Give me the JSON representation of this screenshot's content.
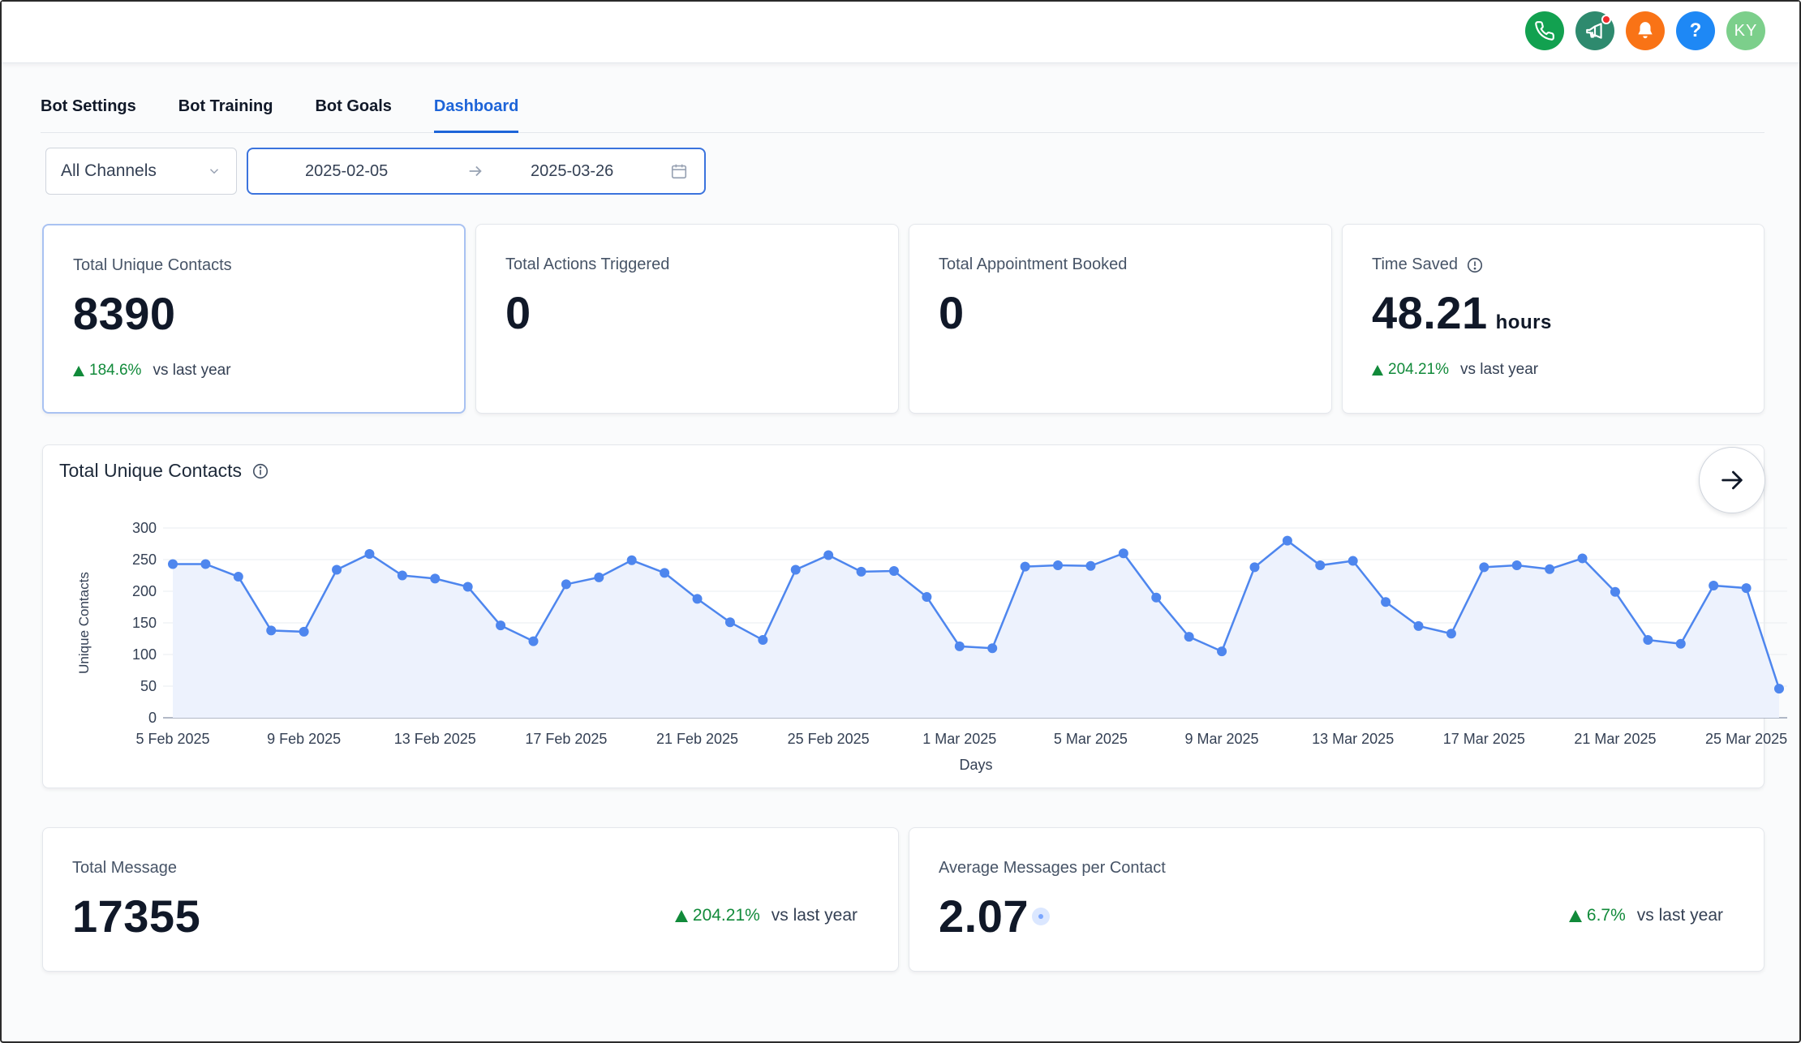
{
  "header": {
    "icons": [
      "phone-icon",
      "megaphone-icon",
      "bell-icon",
      "help-icon"
    ],
    "help_label": "?",
    "avatar_initials": "KY",
    "colors": {
      "phone": "#12a150",
      "megaphone": "#2e8a6e",
      "bell": "#f97316",
      "help": "#1e88f5",
      "avatar": "#7ccf8b"
    }
  },
  "tabs": [
    {
      "label": "Bot Settings",
      "active": false
    },
    {
      "label": "Bot Training",
      "active": false
    },
    {
      "label": "Bot Goals",
      "active": false
    },
    {
      "label": "Dashboard",
      "active": true
    }
  ],
  "filters": {
    "channel": "All Channels",
    "start_date": "2025-02-05",
    "end_date": "2025-03-26"
  },
  "stats": [
    {
      "label": "Total Unique Contacts",
      "value": "8390",
      "trend": "184.6%",
      "trend_suffix": "vs last year"
    },
    {
      "label": "Total Actions Triggered",
      "value": "0"
    },
    {
      "label": "Total Appointment Booked",
      "value": "0"
    },
    {
      "label": "Time Saved",
      "value": "48.21",
      "unit": "hours",
      "trend": "204.21%",
      "trend_suffix": "vs last year"
    }
  ],
  "chart_card": {
    "title": "Total Unique Contacts"
  },
  "chart_data": {
    "type": "line",
    "title": "Total Unique Contacts",
    "xlabel": "Days",
    "ylabel": "Unique Contacts",
    "ylim": [
      0,
      300
    ],
    "yticks": [
      0,
      50,
      100,
      150,
      200,
      250,
      300
    ],
    "xtick_labels": [
      "5 Feb 2025",
      "9 Feb 2025",
      "13 Feb 2025",
      "17 Feb 2025",
      "21 Feb 2025",
      "25 Feb 2025",
      "1 Mar 2025",
      "5 Mar 2025",
      "9 Mar 2025",
      "13 Mar 2025",
      "17 Mar 2025",
      "21 Mar 2025",
      "25 Mar 2025"
    ],
    "xtick_every": 4,
    "values": [
      243,
      243,
      223,
      138,
      136,
      234,
      259,
      225,
      220,
      207,
      146,
      121,
      211,
      222,
      249,
      229,
      188,
      151,
      123,
      234,
      257,
      231,
      232,
      191,
      113,
      110,
      239,
      241,
      240,
      260,
      190,
      128,
      105,
      238,
      280,
      241,
      248,
      183,
      145,
      133,
      238,
      241,
      235,
      252,
      199,
      123,
      117,
      209,
      205,
      46
    ],
    "line_color": "#4e86ee",
    "fill_color": "#edf2fd"
  },
  "bottom": [
    {
      "label": "Total Message",
      "value": "17355",
      "trend": "204.21%",
      "trend_suffix": "vs last year"
    },
    {
      "label": "Average Messages per Contact",
      "value": "2.07",
      "trend": "6.7%",
      "trend_suffix": "vs last year"
    }
  ]
}
